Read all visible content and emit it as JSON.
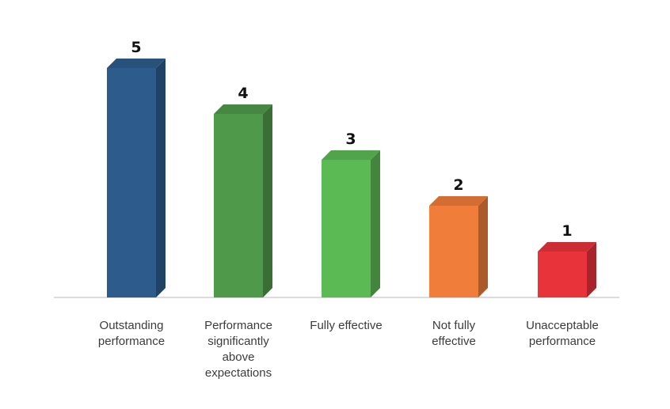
{
  "chart_data": {
    "type": "bar",
    "style": "3d-column",
    "categories": [
      [
        "Outstanding",
        "performance"
      ],
      [
        "Performance",
        "significantly",
        "above",
        "expectations"
      ],
      [
        "Fully effective"
      ],
      [
        "Not fully",
        "effective"
      ],
      [
        "Unacceptable",
        "performance"
      ]
    ],
    "values": [
      5,
      4,
      3,
      2,
      1
    ],
    "data_labels": [
      "5",
      "4",
      "3",
      "2",
      "1"
    ],
    "colors": [
      "#2d5c8c",
      "#4f9a4a",
      "#5cba55",
      "#f07d3a",
      "#e8333b"
    ],
    "ylim": [
      0,
      5
    ],
    "grid": false,
    "legend": "none"
  }
}
